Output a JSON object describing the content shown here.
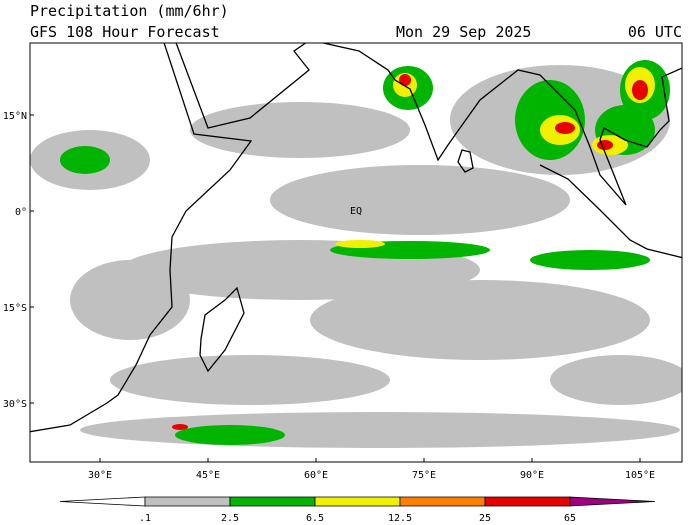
{
  "header": {
    "title": "Precipitation (mm/6hr)",
    "subtitle": "GFS 108 Hour Forecast",
    "date": "Mon 29 Sep 2025",
    "time": "06 UTC"
  },
  "map": {
    "lat_labels": [
      "15°N",
      "0°",
      "15°S",
      "30°S"
    ],
    "lon_labels": [
      "30°E",
      "45°E",
      "60°E",
      "75°E",
      "90°E",
      "105°E"
    ],
    "annotation": "EQ"
  },
  "colorbar": {
    "labels": [
      ".1",
      "2.5",
      "6.5",
      "12.5",
      "25",
      "65"
    ],
    "colors": [
      "#ffffff",
      "#c0c0c0",
      "#00b400",
      "#f0f000",
      "#ff8000",
      "#e60000",
      "#a00080"
    ]
  }
}
